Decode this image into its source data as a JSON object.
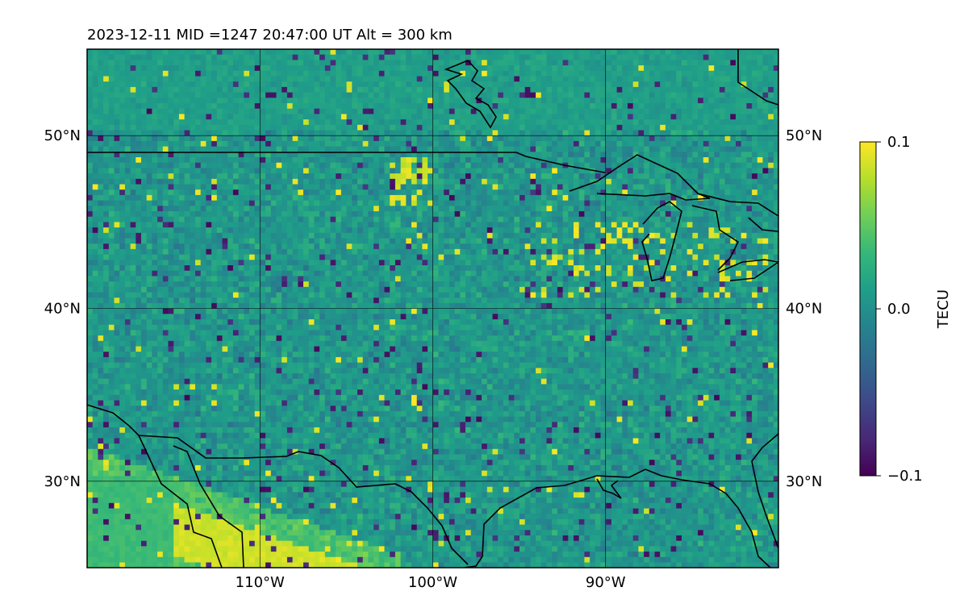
{
  "title": "2023-12-11  MID =1247    20:47:00  UT  Alt = 300 km",
  "map": {
    "lon_range": [
      -120,
      -80
    ],
    "lat_range": [
      25,
      55
    ],
    "lon_ticks": [
      {
        "value": -110,
        "label": "110°W"
      },
      {
        "value": -100,
        "label": "100°W"
      },
      {
        "value": -90,
        "label": "90°W"
      }
    ],
    "lat_ticks": [
      {
        "value": 30,
        "label": "30°N"
      },
      {
        "value": 40,
        "label": "40°N"
      },
      {
        "value": 50,
        "label": "50°N"
      }
    ],
    "grid": true,
    "field": "TEC perturbation (gridded, noisy)"
  },
  "colorbar": {
    "label": "TECU",
    "colormap": "viridis",
    "range": [
      -0.1,
      0.1
    ],
    "ticks": [
      {
        "value": 0.1,
        "label": "0.1"
      },
      {
        "value": 0.0,
        "label": "0.0"
      },
      {
        "value": -0.1,
        "label": "−0.1"
      }
    ]
  },
  "colors": {
    "viridis_stops": [
      "#440154",
      "#482878",
      "#3e4989",
      "#31688e",
      "#26828e",
      "#1f9e89",
      "#35b779",
      "#6ece58",
      "#b5de2b",
      "#fde725"
    ],
    "coastline": "#000000"
  }
}
